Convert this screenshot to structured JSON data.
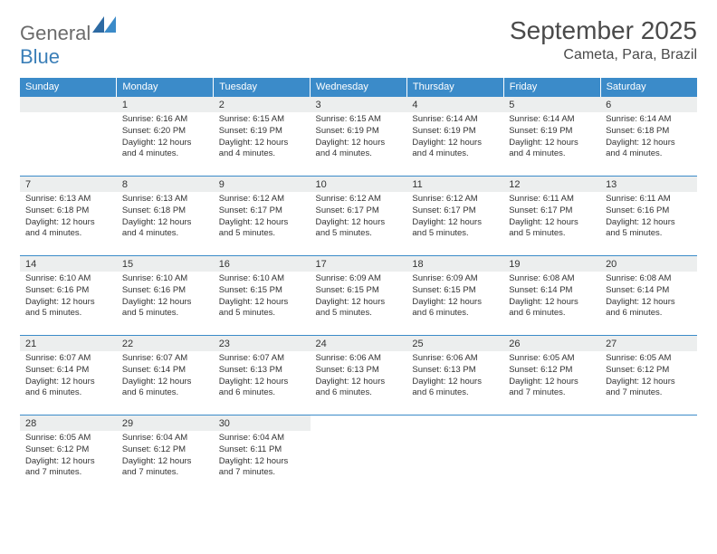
{
  "logo": {
    "general": "General",
    "blue": "Blue"
  },
  "header": {
    "month_title": "September 2025",
    "location": "Cameta, Para, Brazil"
  },
  "colors": {
    "header_bg": "#3b8bc9",
    "header_text": "#ffffff",
    "daynum_bg": "#eceeee",
    "border": "#3b8bc9",
    "text": "#333333",
    "page_bg": "#ffffff"
  },
  "weekdays": [
    "Sunday",
    "Monday",
    "Tuesday",
    "Wednesday",
    "Thursday",
    "Friday",
    "Saturday"
  ],
  "weeks": [
    [
      {
        "n": "",
        "sr": "",
        "ss": "",
        "dl": ""
      },
      {
        "n": "1",
        "sr": "Sunrise: 6:16 AM",
        "ss": "Sunset: 6:20 PM",
        "dl": "Daylight: 12 hours and 4 minutes."
      },
      {
        "n": "2",
        "sr": "Sunrise: 6:15 AM",
        "ss": "Sunset: 6:19 PM",
        "dl": "Daylight: 12 hours and 4 minutes."
      },
      {
        "n": "3",
        "sr": "Sunrise: 6:15 AM",
        "ss": "Sunset: 6:19 PM",
        "dl": "Daylight: 12 hours and 4 minutes."
      },
      {
        "n": "4",
        "sr": "Sunrise: 6:14 AM",
        "ss": "Sunset: 6:19 PM",
        "dl": "Daylight: 12 hours and 4 minutes."
      },
      {
        "n": "5",
        "sr": "Sunrise: 6:14 AM",
        "ss": "Sunset: 6:19 PM",
        "dl": "Daylight: 12 hours and 4 minutes."
      },
      {
        "n": "6",
        "sr": "Sunrise: 6:14 AM",
        "ss": "Sunset: 6:18 PM",
        "dl": "Daylight: 12 hours and 4 minutes."
      }
    ],
    [
      {
        "n": "7",
        "sr": "Sunrise: 6:13 AM",
        "ss": "Sunset: 6:18 PM",
        "dl": "Daylight: 12 hours and 4 minutes."
      },
      {
        "n": "8",
        "sr": "Sunrise: 6:13 AM",
        "ss": "Sunset: 6:18 PM",
        "dl": "Daylight: 12 hours and 4 minutes."
      },
      {
        "n": "9",
        "sr": "Sunrise: 6:12 AM",
        "ss": "Sunset: 6:17 PM",
        "dl": "Daylight: 12 hours and 5 minutes."
      },
      {
        "n": "10",
        "sr": "Sunrise: 6:12 AM",
        "ss": "Sunset: 6:17 PM",
        "dl": "Daylight: 12 hours and 5 minutes."
      },
      {
        "n": "11",
        "sr": "Sunrise: 6:12 AM",
        "ss": "Sunset: 6:17 PM",
        "dl": "Daylight: 12 hours and 5 minutes."
      },
      {
        "n": "12",
        "sr": "Sunrise: 6:11 AM",
        "ss": "Sunset: 6:17 PM",
        "dl": "Daylight: 12 hours and 5 minutes."
      },
      {
        "n": "13",
        "sr": "Sunrise: 6:11 AM",
        "ss": "Sunset: 6:16 PM",
        "dl": "Daylight: 12 hours and 5 minutes."
      }
    ],
    [
      {
        "n": "14",
        "sr": "Sunrise: 6:10 AM",
        "ss": "Sunset: 6:16 PM",
        "dl": "Daylight: 12 hours and 5 minutes."
      },
      {
        "n": "15",
        "sr": "Sunrise: 6:10 AM",
        "ss": "Sunset: 6:16 PM",
        "dl": "Daylight: 12 hours and 5 minutes."
      },
      {
        "n": "16",
        "sr": "Sunrise: 6:10 AM",
        "ss": "Sunset: 6:15 PM",
        "dl": "Daylight: 12 hours and 5 minutes."
      },
      {
        "n": "17",
        "sr": "Sunrise: 6:09 AM",
        "ss": "Sunset: 6:15 PM",
        "dl": "Daylight: 12 hours and 5 minutes."
      },
      {
        "n": "18",
        "sr": "Sunrise: 6:09 AM",
        "ss": "Sunset: 6:15 PM",
        "dl": "Daylight: 12 hours and 6 minutes."
      },
      {
        "n": "19",
        "sr": "Sunrise: 6:08 AM",
        "ss": "Sunset: 6:14 PM",
        "dl": "Daylight: 12 hours and 6 minutes."
      },
      {
        "n": "20",
        "sr": "Sunrise: 6:08 AM",
        "ss": "Sunset: 6:14 PM",
        "dl": "Daylight: 12 hours and 6 minutes."
      }
    ],
    [
      {
        "n": "21",
        "sr": "Sunrise: 6:07 AM",
        "ss": "Sunset: 6:14 PM",
        "dl": "Daylight: 12 hours and 6 minutes."
      },
      {
        "n": "22",
        "sr": "Sunrise: 6:07 AM",
        "ss": "Sunset: 6:14 PM",
        "dl": "Daylight: 12 hours and 6 minutes."
      },
      {
        "n": "23",
        "sr": "Sunrise: 6:07 AM",
        "ss": "Sunset: 6:13 PM",
        "dl": "Daylight: 12 hours and 6 minutes."
      },
      {
        "n": "24",
        "sr": "Sunrise: 6:06 AM",
        "ss": "Sunset: 6:13 PM",
        "dl": "Daylight: 12 hours and 6 minutes."
      },
      {
        "n": "25",
        "sr": "Sunrise: 6:06 AM",
        "ss": "Sunset: 6:13 PM",
        "dl": "Daylight: 12 hours and 6 minutes."
      },
      {
        "n": "26",
        "sr": "Sunrise: 6:05 AM",
        "ss": "Sunset: 6:12 PM",
        "dl": "Daylight: 12 hours and 7 minutes."
      },
      {
        "n": "27",
        "sr": "Sunrise: 6:05 AM",
        "ss": "Sunset: 6:12 PM",
        "dl": "Daylight: 12 hours and 7 minutes."
      }
    ],
    [
      {
        "n": "28",
        "sr": "Sunrise: 6:05 AM",
        "ss": "Sunset: 6:12 PM",
        "dl": "Daylight: 12 hours and 7 minutes."
      },
      {
        "n": "29",
        "sr": "Sunrise: 6:04 AM",
        "ss": "Sunset: 6:12 PM",
        "dl": "Daylight: 12 hours and 7 minutes."
      },
      {
        "n": "30",
        "sr": "Sunrise: 6:04 AM",
        "ss": "Sunset: 6:11 PM",
        "dl": "Daylight: 12 hours and 7 minutes."
      },
      {
        "n": "",
        "sr": "",
        "ss": "",
        "dl": ""
      },
      {
        "n": "",
        "sr": "",
        "ss": "",
        "dl": ""
      },
      {
        "n": "",
        "sr": "",
        "ss": "",
        "dl": ""
      },
      {
        "n": "",
        "sr": "",
        "ss": "",
        "dl": ""
      }
    ]
  ]
}
